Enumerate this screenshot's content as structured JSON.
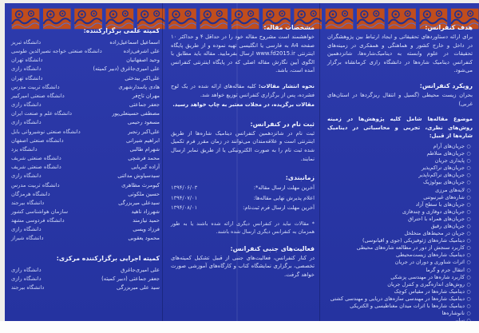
{
  "page": {
    "bg_color": "#2a37a6",
    "tile_color": "#c04d1d",
    "tile_wave_color": "#22318f",
    "text_color": "#d9e0fa"
  },
  "right_column": {
    "goal": {
      "title": "هدف کنفرانس:",
      "body": "برای ارائه دستاوردهای تحقیقاتی و ایجاد ارتباط بین پژوهشگران در داخل و خارج کشور و هماهنگی و همفکری در زمینه‌های تحقیقات در علوم وابسته به دینامیک‌شاره‌ها، شانزدهمین کنفرانس دینامیک شاره‌ها در دانشگاه رازی کرمانشاه برگزار می‌شود."
    },
    "approach": {
      "title": "رویکرد کنفرانس:",
      "body": "بحران زیست محیطی (گسیل و انتقال ریزگردها در استان‌های غربی)"
    },
    "topics": {
      "intro": "موضوع مقاله‌ها شامل کلیه پژوهش‌ها در زمینه روش‌های نظری، تجربی و محاسباتی در دینامیک شاره‌ها از قبیل:",
      "items": [
        "جریان‌های آرام",
        "جریان‌های متلاطم",
        "پایداری جریان",
        "جریان‌های تراکم‌پذیر",
        "جریان‌های تراکم‌ناپذیر",
        "جریان‌های بیولوژیک",
        "لایه‌های مرزی",
        "شاره‌های غیرنیوتنی",
        "جریان‌های با سطح آزاد",
        "جریان‌های دوفازی و چندفازی",
        "جریان‌های همراه با احتراق",
        "جریان‌های رقیق",
        "جریان در محیط‌های متخلخل",
        "دینامیک شاره‌های ژئوفیزیکی (جوی و اقیانوسی)",
        "کاربرد سنجش از دور در مطالعه شاره‌های محیطی",
        "دینامیک شاره‌های زیست‌محیطی",
        "اثرات شناوری و دوران در جریان",
        "انتقال جرم و گرما",
        "کاربرد شاره‌ها در مهندسی پزشکی",
        "روش‌های اندازه‌گیری و کنترل جریان",
        "دینامیک شاره‌ها در مقیاس کوچک",
        "دینامیک شاره‌ها در مهندسی سازه‌های دریایی و مهندسی کشتی",
        "دینامیک شاره‌ها با اثرات میدان مغناطیسی و الکتریکی",
        "نانوشاره‌ها",
        "سایر"
      ]
    }
  },
  "middle_column": {
    "paper_specs": {
      "title": "مشخصات مقاله:",
      "body": "خواهشمند است مشروح مقاله خود را در حداقل ۴ و حداکثر ۱۰ صفحه A4 به فارسی یا انگلیسی تهیه نموده و از طریق پایگاه اینترنتی www.fd2015.ir ارسال بفرمایید. مقاله باید مطابق با الگوی آیین نگارش مقاله اصلی که در پایگاه اینترنتی کنفرانس آمده است، باشد."
    },
    "publication": {
      "title": "نحوه انتشار مقالات:",
      "body": "کلیه مقاله‌های ارائه شده در یک لوح فشرده، پس از برگزاری کنفرانس توزیع خواهد شد.",
      "note": "مقالات برگزیده، در مجلات معتبر به چاپ خواهد رسید."
    },
    "registration": {
      "title": "ثبت نام در کنفرانس:",
      "body": "ثبت نام در شانزدهمین کنفرانس دینامیک شاره‌ها از طریق اینترنتی است و علاقه‌مندان می‌توانند در زمان مقرر فرم تکمیل شده ثبت نام را به صورت الکترونیکی یا از طریق نمابر ارسال نمایند."
    },
    "schedule": {
      "title": "زمانبندی:",
      "rows": [
        {
          "label": "آخرین مهلت ارسال مقاله*:",
          "date": "۱۳۹۴/۰۶/۰۳"
        },
        {
          "label": "اعلام پذیرش نهایی مقاله‌ها:",
          "date": "۱۳۹۴/۰۷/۰۱"
        },
        {
          "label": "آخرین مهلت ارسال فرم ثبت‌نام:",
          "date": "۱۳۹۴/۰۸/۰۱"
        }
      ],
      "footnote": "* مقالات نباید در کنفرانس دیگری ارائه شده باشند یا به طور همزمان به کنفرانس دیگری ارسال شده باشند."
    },
    "side_activities": {
      "title": "فعالیت‌های جنبی کنفرانس:",
      "body": "در کنار کنفرانس، فعالیت‌های جنبی از قبیل تشکیل کمیته‌های تخصصی، برگزاری نمایشگاه کتاب و کارگاه‌های آموزشی صورت خواهد گرفت."
    }
  },
  "left_column": {
    "scientific_committee": {
      "title": "کمیته علمی برگزارکننده:",
      "members": [
        {
          "name": "اسماعیل اسماعیل‌زاده",
          "affiliation": "دانشگاه تبریز"
        },
        {
          "name": "علی اشرفی‌زاده",
          "affiliation": "دانشگاه صنعتی خواجه نصیرالدین طوسی"
        },
        {
          "name": "وحید اصفهانیان",
          "affiliation": "دانشگاه تهران"
        },
        {
          "name": "علی امیری‌جاغرق (دبیر کمیته)",
          "affiliation": "دانشگاه رازی"
        },
        {
          "name": "علی‌اکبر بیدختی",
          "affiliation": "دانشگاه تهران"
        },
        {
          "name": "هادی پاسدارشهری",
          "affiliation": "دانشگاه تربیت مدرس"
        },
        {
          "name": "مهران تاج‌فر",
          "affiliation": "دانشگاه صنعتی امیرکبیر"
        },
        {
          "name": "جعفر جماعتی",
          "affiliation": "دانشگاه رازی"
        },
        {
          "name": "مصطفی حسینعلی‌پور",
          "affiliation": "دانشگاه علم و صنعت ایران"
        },
        {
          "name": "مسعود رحیمی",
          "affiliation": "دانشگاه رازی"
        },
        {
          "name": "علی‌اکبر رنجبر",
          "affiliation": "دانشگاه صنعتی نوشیروانی بابل"
        },
        {
          "name": "ابراهیم شیرانی",
          "affiliation": "دانشگاه صنعتی اصفهان"
        },
        {
          "name": "شهرام طالبی",
          "affiliation": "دانشگاه یزد"
        },
        {
          "name": "محمد فرشچی",
          "affiliation": "دانشگاه صنعتی شریف"
        },
        {
          "name": "آزاده کبریایی",
          "affiliation": "دانشگاه صنعتی شریف"
        },
        {
          "name": "سیدسیاوش مدائنی",
          "affiliation": "دانشگاه رازی"
        },
        {
          "name": "کیومرث مظاهری",
          "affiliation": "دانشگاه تربیت مدرس"
        },
        {
          "name": "حسین ملکوتی",
          "affiliation": "دانشگاه هرمزگان"
        },
        {
          "name": "سیدعلی میربزرگی",
          "affiliation": "دانشگاه بیرجند"
        },
        {
          "name": "شهرزاد ناهید",
          "affiliation": "سازمان هواشناسی کشور"
        },
        {
          "name": "حمید نیازمند",
          "affiliation": "دانشگاه فردوسی مشهد"
        },
        {
          "name": "فرزاد ویسی",
          "affiliation": "دانشگاه رازی"
        },
        {
          "name": "محمود یعقوبی",
          "affiliation": "دانشگاه شیراز"
        }
      ]
    },
    "executive_committee": {
      "title": "کمیته اجرایی برگزارکننده مرکزی:",
      "members": [
        {
          "name": "علی امیری‌جاغرق",
          "affiliation": "دانشگاه رازی"
        },
        {
          "name": "جعفر جماعتی (دبیر کمیته)",
          "affiliation": "دانشگاه رازی"
        },
        {
          "name": "سید علی میربزرگی",
          "affiliation": "دانشگاه بیرجند"
        }
      ]
    }
  }
}
